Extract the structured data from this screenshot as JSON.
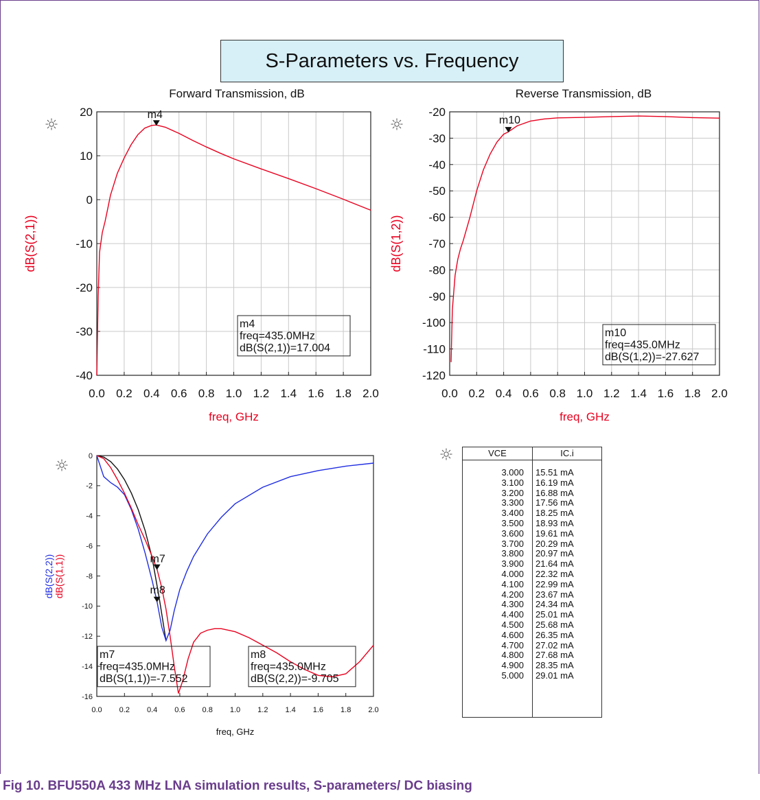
{
  "figure_title": "S-Parameters vs. Frequency",
  "caption": "Fig 10. BFU550A 433 MHz LNA simulation results, S-parameters/ DC biasing",
  "colors": {
    "red": "#e8001e",
    "blue": "#1f2de0",
    "black": "#111111",
    "purple": "#6a3d8c"
  },
  "icons": [
    "sun-icon",
    "sun-icon",
    "sun-icon",
    "sun-icon"
  ],
  "chart_data": [
    {
      "type": "line",
      "title": "Forward Transmission, dB",
      "xlabel": "freq, GHz",
      "ylabel": "dB(S(2,1))",
      "xlim": [
        0.0,
        2.0
      ],
      "ylim": [
        -40,
        20
      ],
      "xticks": [
        "0.0",
        "0.2",
        "0.4",
        "0.6",
        "0.8",
        "1.0",
        "1.2",
        "1.4",
        "1.6",
        "1.8",
        "2.0"
      ],
      "yticks": [
        "20",
        "10",
        "0",
        "-10",
        "-20",
        "-30",
        "-40"
      ],
      "grid": true,
      "series": [
        {
          "x": [
            0.0,
            0.01,
            0.02,
            0.04,
            0.06,
            0.08,
            0.1,
            0.15,
            0.2,
            0.25,
            0.3,
            0.35,
            0.4,
            0.435,
            0.5,
            0.6,
            0.7,
            0.8,
            0.9,
            1.0,
            1.2,
            1.4,
            1.6,
            1.8,
            2.0
          ],
          "y": [
            -40,
            -22,
            -12,
            -7.5,
            -5,
            -2,
            1,
            6,
            9.5,
            12.5,
            14.8,
            16.3,
            16.9,
            17.0,
            16.5,
            15.1,
            13.5,
            12.0,
            10.6,
            9.3,
            7.0,
            4.8,
            2.5,
            0.1,
            -2.4
          ]
        }
      ],
      "marker": {
        "name": "m4",
        "x": 0.435,
        "y": 17.0,
        "lines": [
          "m4",
          "freq=435.0MHz",
          "dB(S(2,1))=17.004"
        ]
      }
    },
    {
      "type": "line",
      "title": "Reverse Transmission, dB",
      "xlabel": "freq, GHz",
      "ylabel": "dB(S(1,2))",
      "xlim": [
        0.0,
        2.0
      ],
      "ylim": [
        -120,
        -20
      ],
      "xticks": [
        "0.0",
        "0.2",
        "0.4",
        "0.6",
        "0.8",
        "1.0",
        "1.2",
        "1.4",
        "1.6",
        "1.8",
        "2.0"
      ],
      "yticks": [
        "-20",
        "-30",
        "-40",
        "-50",
        "-60",
        "-70",
        "-80",
        "-90",
        "-100",
        "-110",
        "-120"
      ],
      "grid": true,
      "series": [
        {
          "x": [
            0.01,
            0.02,
            0.04,
            0.06,
            0.08,
            0.1,
            0.15,
            0.2,
            0.25,
            0.3,
            0.35,
            0.4,
            0.435,
            0.5,
            0.6,
            0.7,
            0.8,
            1.0,
            1.2,
            1.4,
            1.6,
            1.8,
            2.0
          ],
          "y": [
            -115,
            -95,
            -82,
            -76,
            -72,
            -69,
            -60,
            -50,
            -42,
            -36,
            -31.5,
            -28.5,
            -27.6,
            -25.3,
            -23.5,
            -22.7,
            -22.3,
            -22.1,
            -21.8,
            -21.6,
            -21.8,
            -22.2,
            -22.4
          ]
        }
      ],
      "marker": {
        "name": "m10",
        "x": 0.435,
        "y": -27.6,
        "lines": [
          "m10",
          "freq=435.0MHz",
          "dB(S(1,2))=-27.627"
        ]
      }
    },
    {
      "type": "line",
      "title": "",
      "xlabel": "freq, GHz",
      "ylabel_red": "dB(S(1,1))",
      "ylabel_blue": "dB(S(2,2))",
      "xlim": [
        0.0,
        2.0
      ],
      "ylim": [
        -16,
        0
      ],
      "xticks": [
        "0.0",
        "0.2",
        "0.4",
        "0.6",
        "0.8",
        "1.0",
        "1.2",
        "1.4",
        "1.6",
        "1.8",
        "2.0"
      ],
      "yticks": [
        "0",
        "-2",
        "-4",
        "-6",
        "-8",
        "-10",
        "-12",
        "-14",
        "-16"
      ],
      "grid": false,
      "series": [
        {
          "name": "dB(S(1,1))",
          "color": "red",
          "x": [
            0.0,
            0.05,
            0.1,
            0.15,
            0.2,
            0.25,
            0.3,
            0.35,
            0.4,
            0.435,
            0.47,
            0.5,
            0.53,
            0.56,
            0.59,
            0.62,
            0.66,
            0.7,
            0.75,
            0.8,
            0.85,
            0.9,
            1.0,
            1.1,
            1.2,
            1.3,
            1.4,
            1.5,
            1.6,
            1.7,
            1.8,
            1.9,
            2.0
          ],
          "y": [
            0,
            -0.2,
            -0.8,
            -1.6,
            -2.5,
            -3.5,
            -4.6,
            -5.6,
            -6.7,
            -7.55,
            -8.8,
            -10.2,
            -12,
            -14,
            -15.8,
            -15,
            -13.5,
            -12.4,
            -11.8,
            -11.6,
            -11.5,
            -11.5,
            -11.7,
            -12.1,
            -12.6,
            -13.1,
            -13.7,
            -14.2,
            -14.6,
            -14.7,
            -14.5,
            -13.7,
            -12.6
          ]
        },
        {
          "name": "dB(S(2,2))",
          "color": "blue",
          "x": [
            0.0,
            0.05,
            0.1,
            0.15,
            0.2,
            0.25,
            0.3,
            0.35,
            0.4,
            0.435,
            0.47,
            0.5,
            0.53,
            0.56,
            0.6,
            0.65,
            0.7,
            0.8,
            0.9,
            1.0,
            1.2,
            1.4,
            1.6,
            1.8,
            2.0
          ],
          "y": [
            0,
            -1.4,
            -1.8,
            -2.1,
            -2.6,
            -3.6,
            -4.9,
            -6.5,
            -8.3,
            -9.7,
            -11.4,
            -12.3,
            -11.6,
            -10.3,
            -8.9,
            -7.7,
            -6.7,
            -5.2,
            -4.1,
            -3.2,
            -2.1,
            -1.4,
            -1.0,
            -0.7,
            -0.5
          ]
        },
        {
          "name": "",
          "color": "black",
          "x": [
            0.0,
            0.05,
            0.1,
            0.15,
            0.2,
            0.25,
            0.3,
            0.35,
            0.4,
            0.45,
            0.5
          ],
          "y": [
            0,
            -0.1,
            -0.4,
            -0.9,
            -1.6,
            -2.5,
            -3.6,
            -5.0,
            -6.8,
            -9.4,
            -12.3
          ]
        }
      ],
      "markers": [
        {
          "name": "m7",
          "x": 0.435,
          "y": -7.55,
          "lines": [
            "m7",
            "freq=435.0MHz",
            "dB(S(1,1))=-7.552"
          ]
        },
        {
          "name": "m8",
          "x": 0.435,
          "y": -9.7,
          "lines": [
            "m8",
            "freq=435.0MHz",
            "dB(S(2,2))=-9.705"
          ]
        }
      ]
    },
    {
      "type": "table",
      "columns": [
        "VCE",
        "IC.i"
      ],
      "rows": [
        [
          "3.000",
          "15.51 mA"
        ],
        [
          "3.100",
          "16.19 mA"
        ],
        [
          "3.200",
          "16.88 mA"
        ],
        [
          "3.300",
          "17.56 mA"
        ],
        [
          "3.400",
          "18.25 mA"
        ],
        [
          "3.500",
          "18.93 mA"
        ],
        [
          "3.600",
          "19.61 mA"
        ],
        [
          "3.700",
          "20.29 mA"
        ],
        [
          "3.800",
          "20.97 mA"
        ],
        [
          "3.900",
          "21.64 mA"
        ],
        [
          "4.000",
          "22.32 mA"
        ],
        [
          "4.100",
          "22.99 mA"
        ],
        [
          "4.200",
          "23.67 mA"
        ],
        [
          "4.300",
          "24.34 mA"
        ],
        [
          "4.400",
          "25.01 mA"
        ],
        [
          "4.500",
          "25.68 mA"
        ],
        [
          "4.600",
          "26.35 mA"
        ],
        [
          "4.700",
          "27.02 mA"
        ],
        [
          "4.800",
          "27.68 mA"
        ],
        [
          "4.900",
          "28.35 mA"
        ],
        [
          "5.000",
          "29.01 mA"
        ]
      ]
    }
  ]
}
